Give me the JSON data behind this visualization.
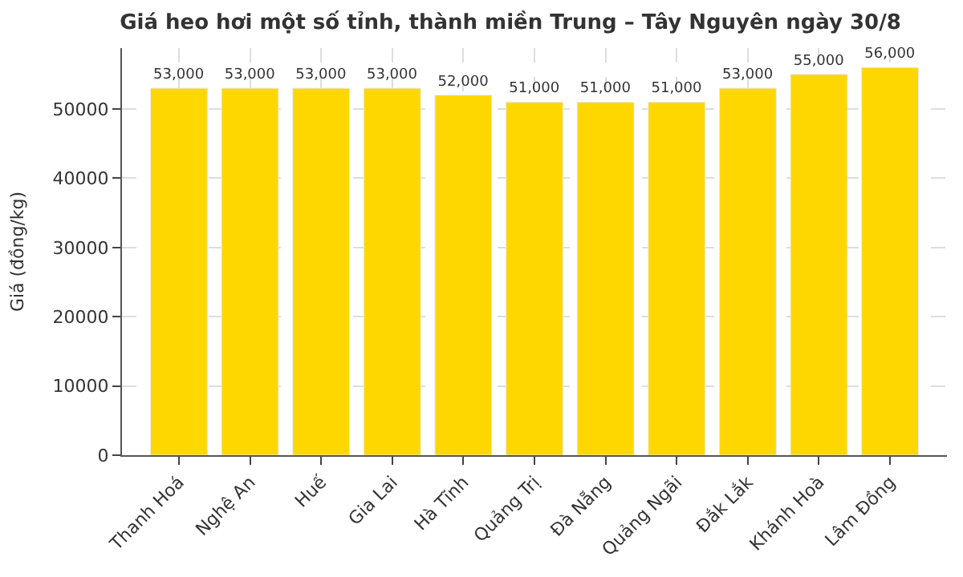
{
  "chart_data": {
    "type": "bar",
    "title": "Giá heo hơi một số tỉnh, thành miền Trung – Tây Nguyên ngày 30/8",
    "ylabel": "Giá (đồng/kg)",
    "categories": [
      "Thanh Hoá",
      "Nghệ An",
      "Huế",
      "Gia Lai",
      "Hà Tĩnh",
      "Quảng Trị",
      "Đà Nẵng",
      "Quảng Ngãi",
      "Đắk Lắk",
      "Khánh Hoà",
      "Lâm Đồng"
    ],
    "values": [
      53000,
      53000,
      53000,
      53000,
      52000,
      51000,
      51000,
      51000,
      53000,
      55000,
      56000
    ],
    "value_labels": [
      "53,000",
      "53,000",
      "53,000",
      "53,000",
      "52,000",
      "51,000",
      "51,000",
      "51,000",
      "53,000",
      "55,000",
      "56,000"
    ],
    "color": "#ffd700",
    "ylim": [
      0,
      58800
    ],
    "yticks": [
      0,
      10000,
      20000,
      30000,
      40000,
      50000
    ],
    "grid": true
  }
}
